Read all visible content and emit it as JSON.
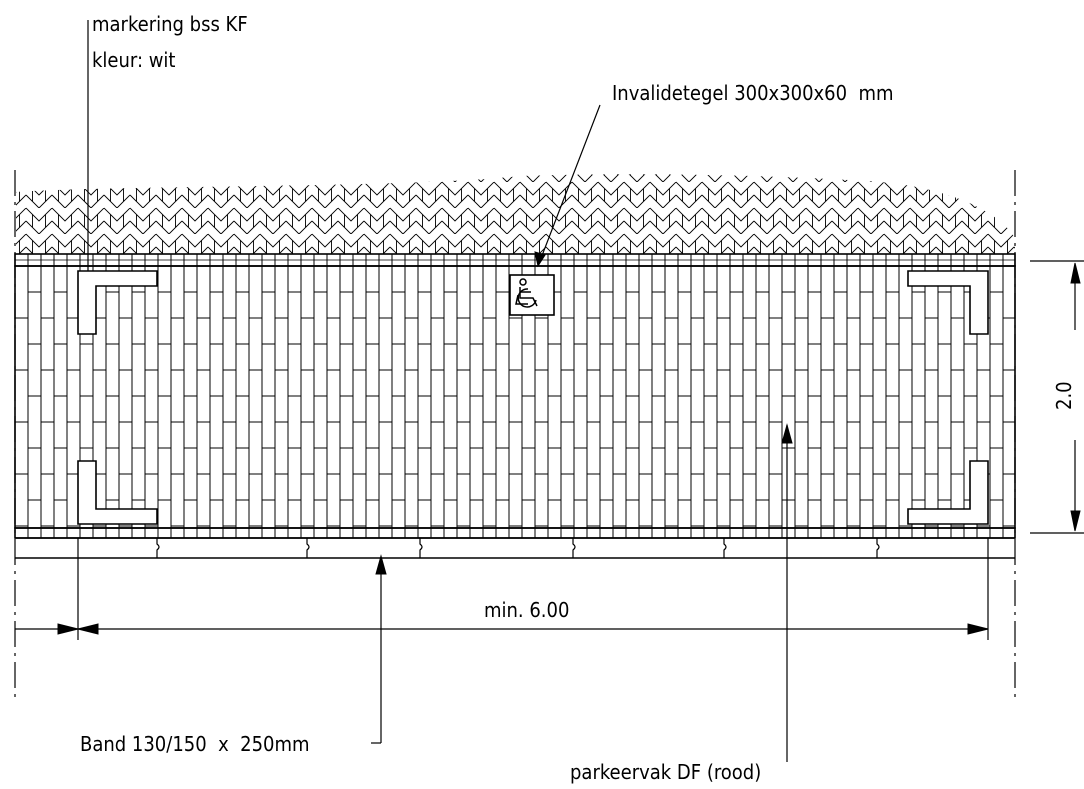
{
  "labels": {
    "marking_line1": "markering bss KF",
    "marking_line2": "kleur: wit",
    "disabled_tile": "Invalidetegel 300x300x60  mm",
    "width_dimension": "min. 6.00",
    "depth_dimension": "2.0",
    "curb": "Band 130/150  x  250mm",
    "parking_space": "parkeervak DF (rood)"
  },
  "icons": {
    "wheelchair_tile": "wheelchair-icon"
  }
}
